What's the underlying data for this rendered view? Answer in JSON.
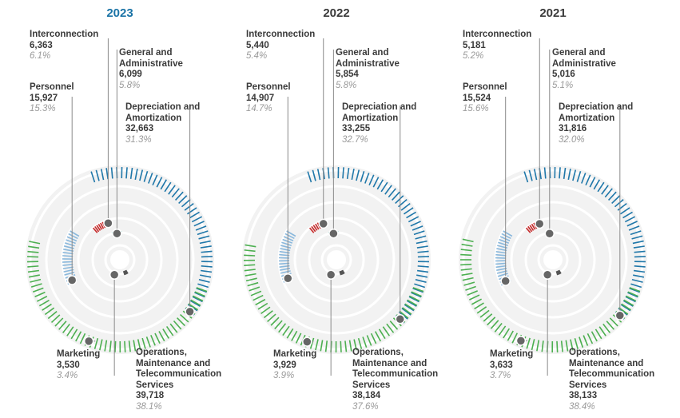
{
  "chart_data": [
    {
      "type": "radial-bar",
      "title": "2023",
      "unit_note": "",
      "categories": [
        {
          "key": "dep",
          "name": "Depreciation and Amortization",
          "value": "32,663",
          "pct": "31.3%",
          "share": 31.3
        },
        {
          "key": "ops",
          "name": "Operations, Maintenance and Telecommunication Services",
          "value": "39,718",
          "pct": "38.1%",
          "share": 38.1
        },
        {
          "key": "personnel",
          "name": "Personnel",
          "value": "15,927",
          "pct": "15.3%",
          "share": 15.3
        },
        {
          "key": "interconnection",
          "name": "Interconnection",
          "value": "6,363",
          "pct": "6.1%",
          "share": 6.1
        },
        {
          "key": "ga",
          "name": "General and Administrative",
          "value": "6,099",
          "pct": "5.8%",
          "share": 5.8
        },
        {
          "key": "marketing",
          "name": "Marketing",
          "value": "3,530",
          "pct": "3.4%",
          "share": 3.4
        }
      ]
    },
    {
      "type": "radial-bar",
      "title": "2022",
      "categories": [
        {
          "key": "dep",
          "name": "Depreciation and Amortization",
          "value": "33,255",
          "pct": "32.7%",
          "share": 32.7
        },
        {
          "key": "ops",
          "name": "Operations, Maintenance and Telecommunication Services",
          "value": "38,184",
          "pct": "37.6%",
          "share": 37.6
        },
        {
          "key": "personnel",
          "name": "Personnel",
          "value": "14,907",
          "pct": "14.7%",
          "share": 14.7
        },
        {
          "key": "interconnection",
          "name": "Interconnection",
          "value": "5,440",
          "pct": "5.4%",
          "share": 5.4
        },
        {
          "key": "ga",
          "name": "General and Administrative",
          "value": "5,854",
          "pct": "5.8%",
          "share": 5.8
        },
        {
          "key": "marketing",
          "name": "Marketing",
          "value": "3,929",
          "pct": "3.9%",
          "share": 3.9
        }
      ]
    },
    {
      "type": "radial-bar",
      "title": "2021",
      "categories": [
        {
          "key": "dep",
          "name": "Depreciation and Amortization",
          "value": "31,816",
          "pct": "32.0%",
          "share": 32.0
        },
        {
          "key": "ops",
          "name": "Operations, Maintenance and Telecommunication Services",
          "value": "38,133",
          "pct": "38.4%",
          "share": 38.4
        },
        {
          "key": "personnel",
          "name": "Personnel",
          "value": "15,524",
          "pct": "15.6%",
          "share": 15.6
        },
        {
          "key": "interconnection",
          "name": "Interconnection",
          "value": "5,181",
          "pct": "5.2%",
          "share": 5.2
        },
        {
          "key": "ga",
          "name": "General and Administrative",
          "value": "5,016",
          "pct": "5.1%",
          "share": 5.1
        },
        {
          "key": "marketing",
          "name": "Marketing",
          "value": "3,633",
          "pct": "3.7%",
          "share": 3.7
        }
      ]
    }
  ],
  "colors": {
    "dep": "#1f77a9",
    "ops": "#4caf50",
    "personnel": "#8ab8dc",
    "interconnection": "#c62828",
    "ga": "#2ab0a0",
    "marketing": "#555555",
    "track": "#eeeeee",
    "dot": "#666666",
    "active_year": "#1a73a6"
  }
}
